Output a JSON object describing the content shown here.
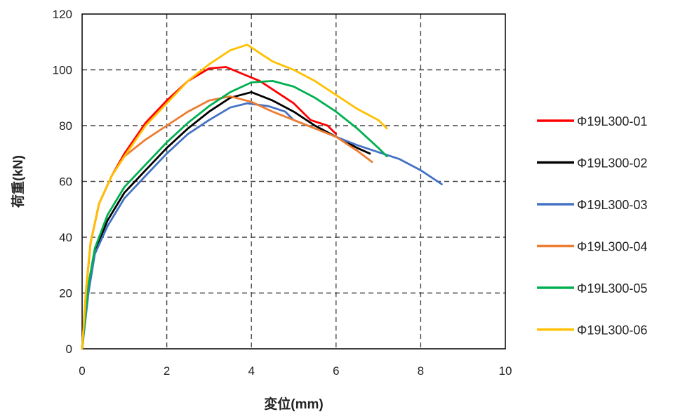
{
  "chart_data": {
    "type": "line",
    "title": "",
    "xlabel": "変位(mm)",
    "ylabel": "荷重(kN)",
    "xlim": [
      0,
      10
    ],
    "ylim": [
      0,
      120
    ],
    "xticks": [
      0,
      2,
      4,
      6,
      8,
      10
    ],
    "yticks": [
      0,
      20,
      40,
      60,
      80,
      100,
      120
    ],
    "xtick_labels": [
      "0",
      "2",
      "4",
      "6",
      "8",
      "10"
    ],
    "ytick_labels": [
      "0",
      "20",
      "40",
      "60",
      "80",
      "100",
      "120"
    ],
    "grid": "dashed",
    "legend_position": "right",
    "series": [
      {
        "name": "Φ19L300-01",
        "color": "#ff0000",
        "points": [
          [
            0,
            0
          ],
          [
            0.1,
            22
          ],
          [
            0.2,
            38
          ],
          [
            0.4,
            52
          ],
          [
            0.7,
            62
          ],
          [
            1.0,
            70
          ],
          [
            1.5,
            81
          ],
          [
            2.0,
            89
          ],
          [
            2.5,
            96
          ],
          [
            3.0,
            100.5
          ],
          [
            3.4,
            101
          ],
          [
            3.8,
            98.5
          ],
          [
            4.2,
            96
          ],
          [
            4.6,
            92
          ],
          [
            5.0,
            88
          ],
          [
            5.4,
            82
          ],
          [
            5.8,
            80
          ],
          [
            6.0,
            77
          ]
        ]
      },
      {
        "name": "Φ19L300-02",
        "color": "#000000",
        "points": [
          [
            0,
            0
          ],
          [
            0.15,
            22
          ],
          [
            0.3,
            35
          ],
          [
            0.6,
            46
          ],
          [
            1.0,
            56
          ],
          [
            1.5,
            64
          ],
          [
            2.0,
            72
          ],
          [
            2.5,
            79
          ],
          [
            3.0,
            85
          ],
          [
            3.5,
            90
          ],
          [
            4.0,
            92
          ],
          [
            4.5,
            89
          ],
          [
            5.0,
            85
          ],
          [
            5.5,
            80
          ],
          [
            6.0,
            76
          ],
          [
            6.5,
            72
          ],
          [
            6.8,
            70
          ]
        ]
      },
      {
        "name": "Φ19L300-03",
        "color": "#4472c4",
        "points": [
          [
            0,
            0
          ],
          [
            0.15,
            20
          ],
          [
            0.3,
            34
          ],
          [
            0.6,
            44
          ],
          [
            1.0,
            54
          ],
          [
            1.5,
            62
          ],
          [
            2.0,
            70
          ],
          [
            2.5,
            77
          ],
          [
            3.0,
            82
          ],
          [
            3.5,
            86.5
          ],
          [
            3.9,
            88
          ],
          [
            4.4,
            87
          ],
          [
            4.8,
            85
          ],
          [
            5.0,
            82
          ],
          [
            5.5,
            79
          ],
          [
            6.0,
            76
          ],
          [
            6.5,
            73
          ],
          [
            7.0,
            70.5
          ],
          [
            7.5,
            68
          ],
          [
            8.0,
            64
          ],
          [
            8.5,
            59
          ]
        ]
      },
      {
        "name": "Φ19L300-04",
        "color": "#ed7d31",
        "points": [
          [
            0,
            0
          ],
          [
            0.1,
            22
          ],
          [
            0.2,
            38
          ],
          [
            0.4,
            52
          ],
          [
            0.7,
            62
          ],
          [
            1.0,
            69
          ],
          [
            1.5,
            75
          ],
          [
            2.0,
            80
          ],
          [
            2.5,
            85
          ],
          [
            3.0,
            89
          ],
          [
            3.5,
            90.5
          ],
          [
            4.0,
            88.5
          ],
          [
            4.5,
            85
          ],
          [
            5.0,
            82
          ],
          [
            5.5,
            79
          ],
          [
            6.0,
            76
          ],
          [
            6.5,
            71
          ],
          [
            6.85,
            67
          ]
        ]
      },
      {
        "name": "Φ19L300-05",
        "color": "#00b050",
        "points": [
          [
            0,
            0
          ],
          [
            0.15,
            23
          ],
          [
            0.3,
            36
          ],
          [
            0.6,
            48
          ],
          [
            1.0,
            58
          ],
          [
            1.5,
            66
          ],
          [
            2.0,
            74
          ],
          [
            2.5,
            81
          ],
          [
            3.0,
            87
          ],
          [
            3.5,
            92
          ],
          [
            4.0,
            95.5
          ],
          [
            4.5,
            96
          ],
          [
            5.0,
            94
          ],
          [
            5.5,
            90
          ],
          [
            6.0,
            85
          ],
          [
            6.5,
            79
          ],
          [
            7.0,
            72
          ],
          [
            7.2,
            69
          ]
        ]
      },
      {
        "name": "Φ19L300-06",
        "color": "#ffc000",
        "points": [
          [
            0,
            0
          ],
          [
            0.1,
            22
          ],
          [
            0.2,
            38
          ],
          [
            0.4,
            52
          ],
          [
            0.7,
            62
          ],
          [
            1.0,
            69
          ],
          [
            1.5,
            80
          ],
          [
            2.0,
            88
          ],
          [
            2.5,
            96
          ],
          [
            3.0,
            102
          ],
          [
            3.5,
            107
          ],
          [
            3.9,
            109
          ],
          [
            4.2,
            106
          ],
          [
            4.5,
            103
          ],
          [
            5.0,
            100
          ],
          [
            5.5,
            96
          ],
          [
            6.0,
            91
          ],
          [
            6.5,
            86
          ],
          [
            7.0,
            82
          ],
          [
            7.2,
            79
          ]
        ]
      }
    ]
  }
}
